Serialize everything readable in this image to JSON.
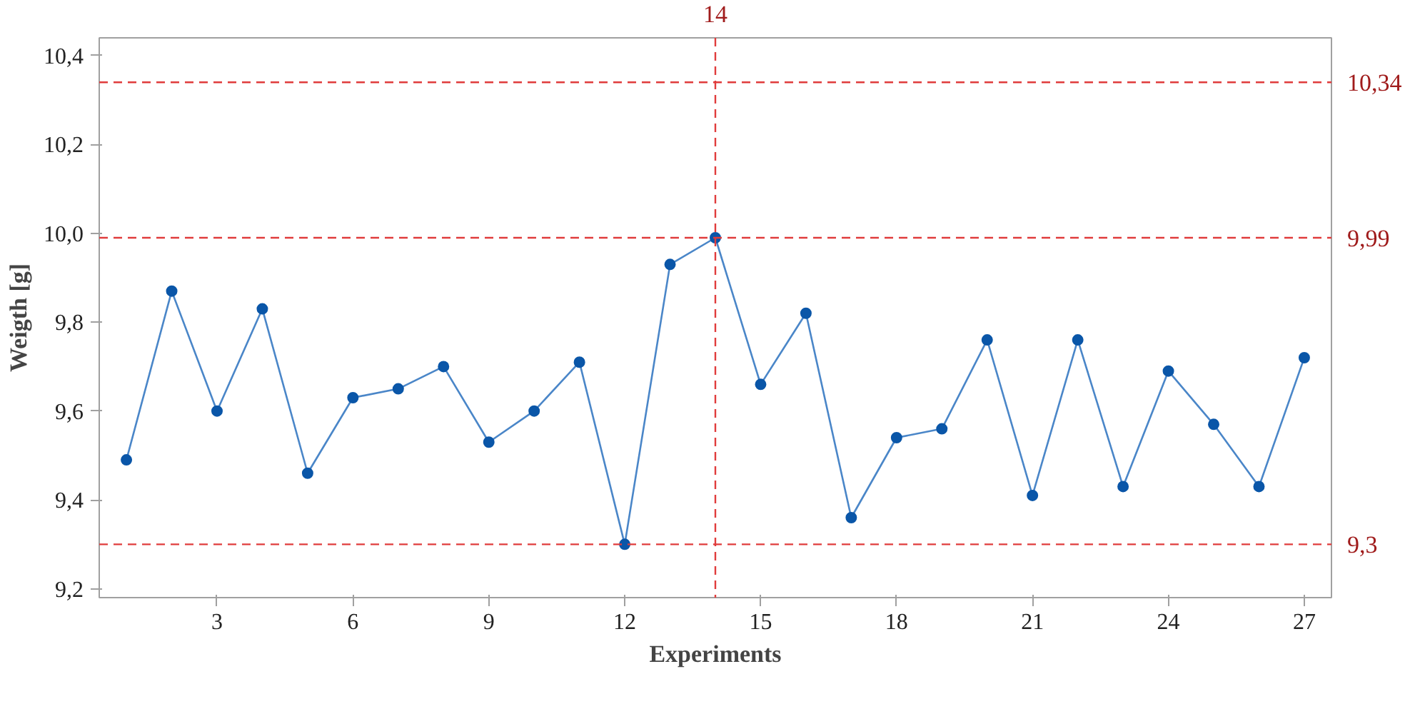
{
  "chart_data": {
    "type": "line",
    "xlabel": "Experiments",
    "ylabel": "Weigth [g]",
    "x": [
      1,
      2,
      3,
      4,
      5,
      6,
      7,
      8,
      9,
      10,
      11,
      12,
      13,
      14,
      15,
      16,
      17,
      18,
      19,
      20,
      21,
      22,
      23,
      24,
      25,
      26,
      27
    ],
    "series": [
      {
        "color": "#0a56a8",
        "values": [
          9.49,
          9.87,
          9.6,
          9.83,
          9.46,
          9.63,
          9.65,
          9.7,
          9.53,
          9.6,
          9.71,
          9.3,
          9.93,
          9.99,
          9.66,
          9.82,
          9.36,
          9.54,
          9.56,
          9.76,
          9.41,
          9.76,
          9.43,
          9.69,
          9.57,
          9.43,
          9.72
        ]
      }
    ],
    "xlim": [
      0.4,
      27.6
    ],
    "xticks": [
      3,
      6,
      9,
      12,
      15,
      18,
      21,
      24,
      27
    ],
    "ylim": [
      9.18,
      10.44
    ],
    "yticks": [
      {
        "value": 9.2,
        "label": "9,2"
      },
      {
        "value": 9.4,
        "label": "9,4"
      },
      {
        "value": 9.6,
        "label": "9,6"
      },
      {
        "value": 9.8,
        "label": "9,8"
      },
      {
        "value": 10.0,
        "label": "10,0"
      },
      {
        "value": 10.2,
        "label": "10,2"
      },
      {
        "value": 10.4,
        "label": "10,4"
      }
    ],
    "ref_lines": [
      {
        "axis": "y",
        "value": 10.34,
        "label": "10,34",
        "color": "#e03c3c",
        "line_style": "dashed"
      },
      {
        "axis": "y",
        "value": 9.99,
        "label": "9,99",
        "color": "#e03c3c",
        "line_style": "dashed"
      },
      {
        "axis": "y",
        "value": 9.3,
        "label": "9,3",
        "color": "#e03c3c",
        "line_style": "dashed"
      },
      {
        "axis": "x",
        "value": 14,
        "label": "14",
        "color": "#e03c3c",
        "line_style": "dashed"
      }
    ],
    "marker": "circle",
    "line_style": "solid",
    "grid": false
  }
}
